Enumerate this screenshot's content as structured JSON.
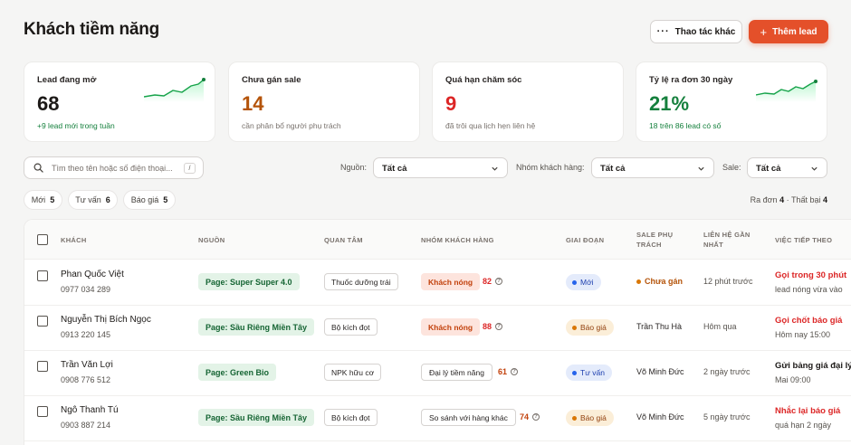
{
  "header": {
    "title": "Khách tiềm năng",
    "more_label": "Thao tác khác",
    "add_label": "Thêm lead"
  },
  "cards": [
    {
      "label": "Lead đang mở",
      "value": "68",
      "sub": "+9 lead mới trong tuần",
      "value_color": "#1c1917",
      "sparkline": true
    },
    {
      "label": "Chưa gán sale",
      "value": "14",
      "sub": "cần phân bổ người phụ trách",
      "value_color": "#b45309"
    },
    {
      "label": "Quá hạn chăm sóc",
      "value": "9",
      "sub": "đã trôi qua lịch hẹn liên hệ",
      "value_color": "#dc2626"
    },
    {
      "label": "Tỷ lệ ra đơn 30 ngày",
      "value": "21%",
      "sub": "18 trên 86 lead có số",
      "value_color": "#15803d",
      "sparkline": true
    }
  ],
  "filters": {
    "search_placeholder": "Tìm theo tên hoặc số điện thoại...",
    "search_shortcut": "/",
    "source_label": "Nguồn:",
    "source_value": "Tất cả",
    "group_label": "Nhóm khách hàng:",
    "group_value": "Tất cả",
    "sale_label": "Sale:",
    "sale_value": "Tất cả"
  },
  "chips": [
    {
      "label": "Mới",
      "count": "5"
    },
    {
      "label": "Tư vấn",
      "count": "6"
    },
    {
      "label": "Báo giá",
      "count": "5"
    }
  ],
  "stats": {
    "won_label": "Ra đơn",
    "won_value": "4",
    "sep": "·",
    "lost_label": "Thất bại",
    "lost_value": "4"
  },
  "table": {
    "columns": {
      "customer": "KHÁCH",
      "source": "NGUỒN",
      "interest": "QUAN TÂM",
      "group": "NHÓM KHÁCH HÀNG",
      "stage": "GIAI ĐOẠN",
      "sale_1": "SALE PHỤ",
      "sale_2": "TRÁCH",
      "contact_1": "LIÊN HỆ GẦN",
      "contact_2": "NHẤT",
      "next": "VIỆC TIẾP THEO"
    },
    "rows": [
      {
        "name": "Phan Quốc Việt",
        "phone": "0977 034 289",
        "source": "Page: Super Super 4.0",
        "interest": "Thuốc dưỡng trái",
        "group": "Khách nóng",
        "score": "82",
        "stage": "Mới",
        "sale": "Chưa gán",
        "contact": "12 phút trước",
        "next_title": "Gọi trong 30 phút",
        "next_sub": "lead nóng vừa vào"
      },
      {
        "name": "Nguyễn Thị Bích Ngọc",
        "phone": "0913 220 145",
        "source": "Page: Sầu Riêng Miền Tây",
        "interest": "Bộ kích đọt",
        "group": "Khách nóng",
        "score": "88",
        "stage": "Báo giá",
        "sale": "Trần Thu Hà",
        "contact": "Hôm qua",
        "next_title": "Gọi chốt báo giá",
        "next_sub": "Hôm nay 15:00"
      },
      {
        "name": "Trần Văn Lợi",
        "phone": "0908 776 512",
        "source": "Page: Green Bio",
        "interest": "NPK hữu cơ",
        "group": "Đại lý tiềm năng",
        "score": "61",
        "stage": "Tư vấn",
        "sale": "Võ Minh Đức",
        "contact": "2 ngày trước",
        "next_title": "Gửi bảng giá đại lý",
        "next_sub": "Mai 09:00"
      },
      {
        "name": "Ngô Thanh Tú",
        "phone": "0903 887 214",
        "source": "Page: Sầu Riêng Miền Tây",
        "interest": "Bộ kích đọt",
        "group": "So sánh với hàng khác",
        "score": "74",
        "stage": "Báo giá",
        "sale": "Võ Minh Đức",
        "contact": "5 ngày trước",
        "next_title": "Nhắc lại báo giá",
        "next_sub": "quá hạn 2 ngày"
      }
    ]
  }
}
